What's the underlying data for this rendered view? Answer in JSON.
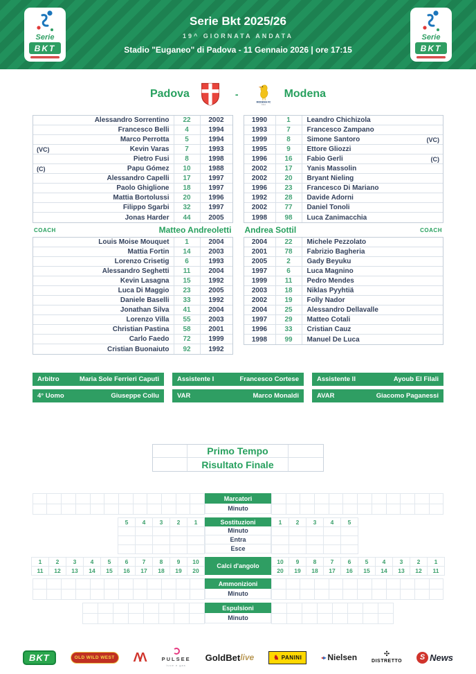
{
  "header": {
    "title": "Serie Bkt 2025/26",
    "subtitle": "19^ GIORNATA ANDATA",
    "venue": "Stadio \"Euganeo\" di Padova - 11 Gennaio 2026 | ore 17:15",
    "logo_serie": "Serie",
    "logo_bkt": "BKT"
  },
  "match": {
    "home_team": "Padova",
    "away_team": "Modena",
    "separator": "-"
  },
  "home": {
    "coach_label": "COACH",
    "coach": "Matteo Andreoletti",
    "starters": [
      {
        "tag": "",
        "name": "Alessandro Sorrentino",
        "num": "22",
        "year": "2002"
      },
      {
        "tag": "",
        "name": "Francesco Belli",
        "num": "4",
        "year": "1994"
      },
      {
        "tag": "",
        "name": "Marco Perrotta",
        "num": "5",
        "year": "1994"
      },
      {
        "tag": "(VC)",
        "name": "Kevin Varas",
        "num": "7",
        "year": "1993"
      },
      {
        "tag": "",
        "name": "Pietro Fusi",
        "num": "8",
        "year": "1998"
      },
      {
        "tag": "(C)",
        "name": "Papu Gómez",
        "num": "10",
        "year": "1988"
      },
      {
        "tag": "",
        "name": "Alessandro Capelli",
        "num": "17",
        "year": "1997"
      },
      {
        "tag": "",
        "name": "Paolo Ghiglione",
        "num": "18",
        "year": "1997"
      },
      {
        "tag": "",
        "name": "Mattia Bortolussi",
        "num": "20",
        "year": "1996"
      },
      {
        "tag": "",
        "name": "Filippo Sgarbi",
        "num": "32",
        "year": "1997"
      },
      {
        "tag": "",
        "name": "Jonas Harder",
        "num": "44",
        "year": "2005"
      }
    ],
    "bench": [
      {
        "tag": "",
        "name": "Louis Moise Mouquet",
        "num": "1",
        "year": "2004"
      },
      {
        "tag": "",
        "name": "Mattia Fortin",
        "num": "14",
        "year": "2003"
      },
      {
        "tag": "",
        "name": "Lorenzo Crisetig",
        "num": "6",
        "year": "1993"
      },
      {
        "tag": "",
        "name": "Alessandro Seghetti",
        "num": "11",
        "year": "2004"
      },
      {
        "tag": "",
        "name": "Kevin Lasagna",
        "num": "15",
        "year": "1992"
      },
      {
        "tag": "",
        "name": "Luca Di Maggio",
        "num": "23",
        "year": "2005"
      },
      {
        "tag": "",
        "name": "Daniele Baselli",
        "num": "33",
        "year": "1992"
      },
      {
        "tag": "",
        "name": "Jonathan Silva",
        "num": "41",
        "year": "2004"
      },
      {
        "tag": "",
        "name": "Lorenzo Villa",
        "num": "55",
        "year": "2003"
      },
      {
        "tag": "",
        "name": "Christian Pastina",
        "num": "58",
        "year": "2001"
      },
      {
        "tag": "",
        "name": "Carlo Faedo",
        "num": "72",
        "year": "1999"
      },
      {
        "tag": "",
        "name": "Cristian Buonaiuto",
        "num": "92",
        "year": "1992"
      }
    ]
  },
  "away": {
    "coach_label": "COACH",
    "coach": "Andrea Sottil",
    "starters": [
      {
        "year": "1990",
        "num": "1",
        "name": "Leandro Chichizola",
        "tag": ""
      },
      {
        "year": "1993",
        "num": "7",
        "name": "Francesco Zampano",
        "tag": ""
      },
      {
        "year": "1999",
        "num": "8",
        "name": "Simone Santoro",
        "tag": "(VC)"
      },
      {
        "year": "1995",
        "num": "9",
        "name": "Ettore Gliozzi",
        "tag": ""
      },
      {
        "year": "1996",
        "num": "16",
        "name": "Fabio Gerli",
        "tag": "(C)"
      },
      {
        "year": "2002",
        "num": "17",
        "name": "Yanis Massolin",
        "tag": ""
      },
      {
        "year": "2002",
        "num": "20",
        "name": "Bryant Nieling",
        "tag": ""
      },
      {
        "year": "1996",
        "num": "23",
        "name": "Francesco Di Mariano",
        "tag": ""
      },
      {
        "year": "1992",
        "num": "28",
        "name": "Davide Adorni",
        "tag": ""
      },
      {
        "year": "2002",
        "num": "77",
        "name": "Daniel Tonoli",
        "tag": ""
      },
      {
        "year": "1998",
        "num": "98",
        "name": "Luca Zanimacchia",
        "tag": ""
      }
    ],
    "bench": [
      {
        "year": "2004",
        "num": "22",
        "name": "Michele Pezzolato",
        "tag": ""
      },
      {
        "year": "2001",
        "num": "78",
        "name": "Fabrizio Bagheria",
        "tag": ""
      },
      {
        "year": "2005",
        "num": "2",
        "name": "Gady Beyuku",
        "tag": ""
      },
      {
        "year": "1997",
        "num": "6",
        "name": "Luca Magnino",
        "tag": ""
      },
      {
        "year": "1999",
        "num": "11",
        "name": "Pedro Mendes",
        "tag": ""
      },
      {
        "year": "2003",
        "num": "18",
        "name": "Niklas Pyyhtiä",
        "tag": ""
      },
      {
        "year": "2002",
        "num": "19",
        "name": "Folly Nador",
        "tag": ""
      },
      {
        "year": "2004",
        "num": "25",
        "name": "Alessandro Dellavalle",
        "tag": ""
      },
      {
        "year": "1997",
        "num": "29",
        "name": "Matteo Cotali",
        "tag": ""
      },
      {
        "year": "1996",
        "num": "33",
        "name": "Cristian Cauz",
        "tag": ""
      },
      {
        "year": "1998",
        "num": "99",
        "name": "Manuel De Luca",
        "tag": ""
      }
    ]
  },
  "officials": [
    {
      "label": "Arbitro",
      "value": "Maria Sole Ferrieri Caputi"
    },
    {
      "label": "Assistente I",
      "value": "Francesco Cortese"
    },
    {
      "label": "Assistente II",
      "value": "Ayoub El Filali"
    },
    {
      "label": "4° Uomo",
      "value": "Giuseppe Collu"
    },
    {
      "label": "VAR",
      "value": "Marco Monaldi"
    },
    {
      "label": "AVAR",
      "value": "Giacomo Paganessi"
    }
  ],
  "score": {
    "rows": [
      "Primo Tempo",
      "Risultato Finale"
    ]
  },
  "stats": {
    "marcatori": {
      "title": "Marcatori",
      "minuto": "Minuto"
    },
    "sostituzioni": {
      "title": "Sostituzioni",
      "numbers_left": [
        "5",
        "4",
        "3",
        "2",
        "1"
      ],
      "numbers_right": [
        "1",
        "2",
        "3",
        "4",
        "5"
      ],
      "rows": [
        "Minuto",
        "Entra",
        "Esce"
      ]
    },
    "corners": {
      "title": "Calci d'angolo",
      "left": [
        "1",
        "2",
        "3",
        "4",
        "5",
        "6",
        "7",
        "8",
        "9",
        "10",
        "11",
        "12",
        "13",
        "14",
        "15",
        "16",
        "17",
        "18",
        "19",
        "20"
      ],
      "right": [
        "10",
        "9",
        "8",
        "7",
        "6",
        "5",
        "4",
        "3",
        "2",
        "1",
        "20",
        "19",
        "18",
        "17",
        "16",
        "15",
        "14",
        "13",
        "12",
        "11"
      ]
    },
    "ammonizioni": {
      "title": "Ammonizioni",
      "minuto": "Minuto"
    },
    "espulsioni": {
      "title": "Espulsioni",
      "minuto": "Minuto"
    }
  },
  "colors": {
    "accent_green": "#2f9e63",
    "text_green": "#27a05e",
    "text_navy": "#33415c",
    "header_green": "#1f8a56"
  },
  "sponsors": {
    "bkt": "BKT",
    "oldwildwest": "OLD WILD WEST",
    "kappa_symbol": "ΛΛ",
    "pulsee": "PULSEE",
    "pulsee_tagline": "luce e gas",
    "goldbet": "GoldBet",
    "goldbet_live": "live",
    "panini": "PANINI",
    "nielsen": "Nielsen",
    "distretto": "DISTRETTO",
    "snews_s": "S",
    "snews_news": "News"
  }
}
